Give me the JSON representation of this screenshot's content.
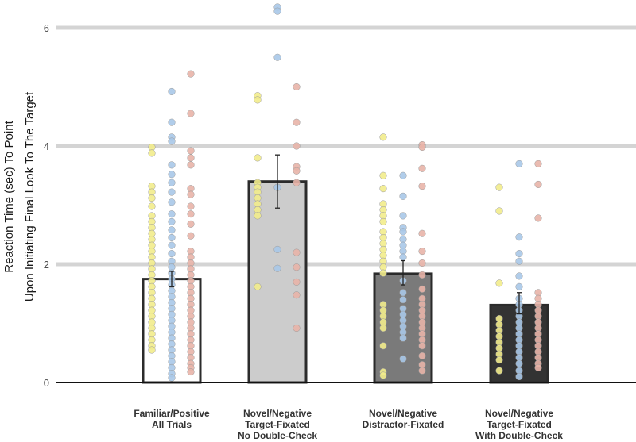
{
  "chart_data": {
    "type": "bar",
    "title": "",
    "xlabel": "",
    "ylabel_lines": [
      "Reaction Time (sec) To Point",
      "Upon Initiating Final Look To The Target"
    ],
    "ylim": [
      0,
      6.4
    ],
    "yticks": [
      0,
      2,
      4,
      6
    ],
    "grid": true,
    "categories": [
      {
        "lines": [
          "Familiar/Positive",
          "All Trials"
        ]
      },
      {
        "lines": [
          "Novel/Negative",
          "Target-Fixated",
          "No Double-Check"
        ]
      },
      {
        "lines": [
          "Novel/Negative",
          "Distractor-Fixated"
        ]
      },
      {
        "lines": [
          "Novel/Negative",
          "Target-Fixated",
          "With Double-Check"
        ]
      }
    ],
    "values": [
      1.75,
      3.4,
      1.84,
      1.31
    ],
    "error": [
      [
        1.62,
        1.88
      ],
      [
        2.95,
        3.85
      ],
      [
        1.65,
        2.06
      ],
      [
        1.16,
        1.52
      ]
    ],
    "bar_fill": [
      "#ffffff",
      "#cccccc",
      "#7a7a7a",
      "#333333"
    ],
    "point_colors": {
      "yellow": "#f2ec8c",
      "blue": "#a8c8e8",
      "pink": "#e8b4a8"
    },
    "points": [
      {
        "yellow": [
          3.98,
          3.88,
          3.32,
          3.22,
          3.12,
          2.98,
          2.82,
          2.72,
          2.62,
          2.52,
          2.42,
          2.32,
          2.22,
          2.12,
          2.02,
          1.92,
          1.82,
          1.72,
          1.62,
          1.52,
          1.42,
          1.32,
          1.22,
          1.12,
          1.02,
          0.92,
          0.82,
          0.72,
          0.62,
          0.55
        ],
        "blue": [
          4.92,
          4.4,
          4.15,
          4.08,
          3.68,
          3.52,
          3.38,
          3.22,
          3.05,
          2.85,
          2.72,
          2.58,
          2.45,
          2.32,
          2.18,
          2.05,
          1.95,
          1.85,
          1.75,
          1.65,
          1.55,
          1.45,
          1.35,
          1.25,
          1.15,
          1.05,
          0.95,
          0.85,
          0.75,
          0.65,
          0.55,
          0.45,
          0.35,
          0.25,
          0.15,
          0.08
        ],
        "pink": [
          5.22,
          4.55,
          3.92,
          3.8,
          3.68,
          3.28,
          3.18,
          2.98,
          2.85,
          2.68,
          2.48,
          2.22,
          2.12,
          2.02,
          1.92,
          1.82,
          1.72,
          1.62,
          1.52,
          1.42,
          1.32,
          1.22,
          1.12,
          1.02,
          0.92,
          0.82,
          0.72,
          0.62,
          0.52,
          0.42,
          0.32,
          0.25,
          0.18
        ]
      },
      {
        "yellow": [
          4.85,
          4.78,
          3.8,
          3.38,
          3.3,
          3.22,
          3.12,
          3.02,
          2.92,
          2.82,
          1.62
        ],
        "blue": [
          6.35,
          6.28,
          5.5,
          3.3,
          2.25,
          1.93
        ],
        "pink": [
          5.0,
          4.4,
          4.0,
          3.65,
          3.58,
          3.38,
          2.2,
          1.95,
          1.7,
          1.48,
          0.92
        ]
      },
      {
        "yellow": [
          4.15,
          3.5,
          3.28,
          3.02,
          2.92,
          2.82,
          2.72,
          2.55,
          2.45,
          2.35,
          2.25,
          2.15,
          2.05,
          1.95,
          1.85,
          1.32,
          1.22,
          1.12,
          1.02,
          0.92,
          0.62,
          0.18,
          0.12
        ],
        "blue": [
          3.5,
          3.15,
          2.82,
          2.62,
          2.55,
          2.42,
          2.32,
          2.22,
          2.12,
          1.72,
          1.52,
          1.4,
          1.25,
          1.15,
          1.05,
          0.95,
          0.85,
          0.75,
          0.4
        ],
        "pink": [
          4.02,
          3.98,
          3.62,
          3.32,
          2.52,
          2.22,
          2.02,
          1.82,
          1.58,
          1.42,
          1.32,
          1.22,
          1.12,
          1.02,
          0.92,
          0.82,
          0.72,
          0.62,
          0.45,
          0.3,
          0.2
        ]
      },
      {
        "yellow": [
          3.3,
          2.9,
          1.68,
          1.08,
          0.98,
          0.88,
          0.78,
          0.68,
          0.58,
          0.48,
          0.38,
          0.2
        ],
        "blue": [
          3.7,
          2.46,
          2.18,
          2.05,
          1.8,
          1.62,
          1.42,
          1.32,
          1.22,
          1.12,
          1.02,
          0.92,
          0.82,
          0.72,
          0.62,
          0.52,
          0.42,
          0.32,
          0.2,
          0.1
        ],
        "pink": [
          3.7,
          3.35,
          2.78,
          1.52,
          1.42,
          1.32,
          1.22,
          1.12,
          1.02,
          0.92,
          0.82,
          0.72,
          0.62,
          0.52,
          0.42,
          0.32,
          0.25
        ]
      }
    ]
  }
}
